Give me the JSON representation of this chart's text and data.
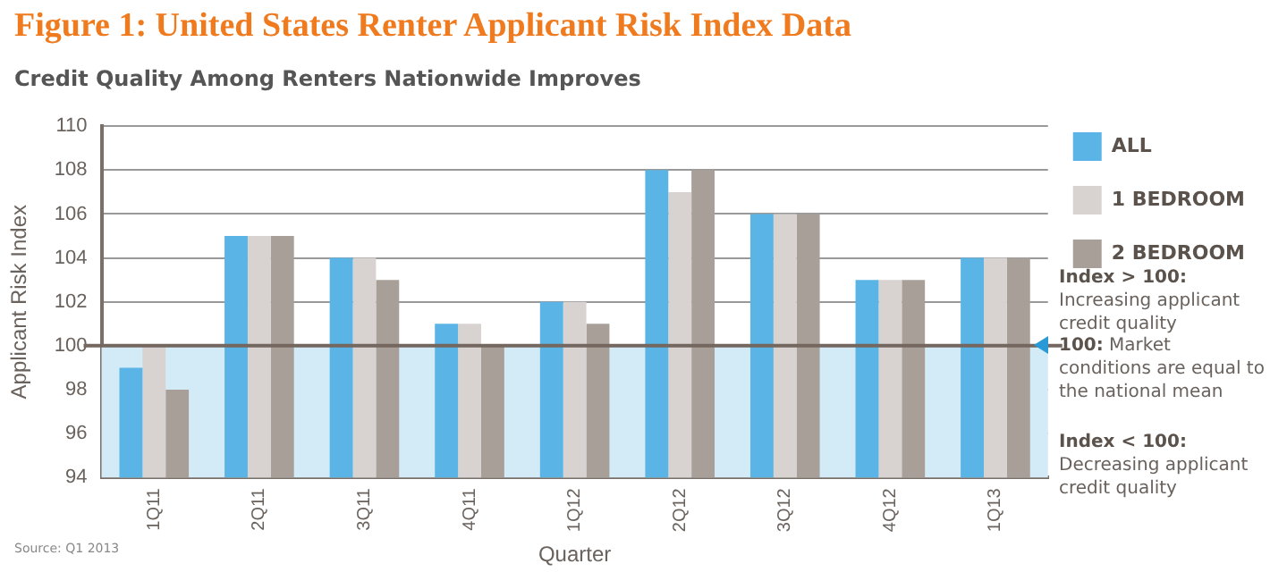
{
  "chart_data": {
    "type": "bar",
    "title": "Figure 1: United States Renter Applicant Risk Index Data",
    "subtitle": "Credit Quality Among Renters Nationwide Improves",
    "xlabel": "Quarter",
    "ylabel": "Applicant Risk Index",
    "categories": [
      "1Q11",
      "2Q11",
      "3Q11",
      "4Q11",
      "1Q12",
      "2Q12",
      "3Q12",
      "4Q12",
      "1Q13"
    ],
    "series": [
      {
        "name": "ALL",
        "color": "#5ab4e5",
        "values": [
          99,
          105,
          104,
          101,
          102,
          108,
          106,
          103,
          104
        ]
      },
      {
        "name": "1 BEDROOM",
        "color": "#d8d3d0",
        "values": [
          100,
          105,
          104,
          101,
          102,
          107,
          106,
          103,
          104
        ]
      },
      {
        "name": "2 BEDROOM",
        "color": "#a89f99",
        "values": [
          98,
          105,
          103,
          100,
          101,
          108,
          106,
          103,
          104
        ]
      }
    ],
    "ylim": [
      94,
      110
    ],
    "yticks": [
      94,
      96,
      98,
      100,
      102,
      104,
      106,
      108,
      110
    ],
    "grid": "y",
    "legend": "top right",
    "ref_lines": [
      {
        "axis": "y",
        "value": 100,
        "label": "100: Market conditions are equal to the national mean",
        "color": "#74675f"
      }
    ],
    "bands": [
      {
        "axis": "y",
        "from": 94,
        "to": 100,
        "color": "#d3eaf7"
      }
    ],
    "annotations": [
      "Index > 100: Increasing applicant credit quality",
      "Index < 100: Decreasing applicant credit quality",
      "Source: Q1 2013"
    ]
  }
}
